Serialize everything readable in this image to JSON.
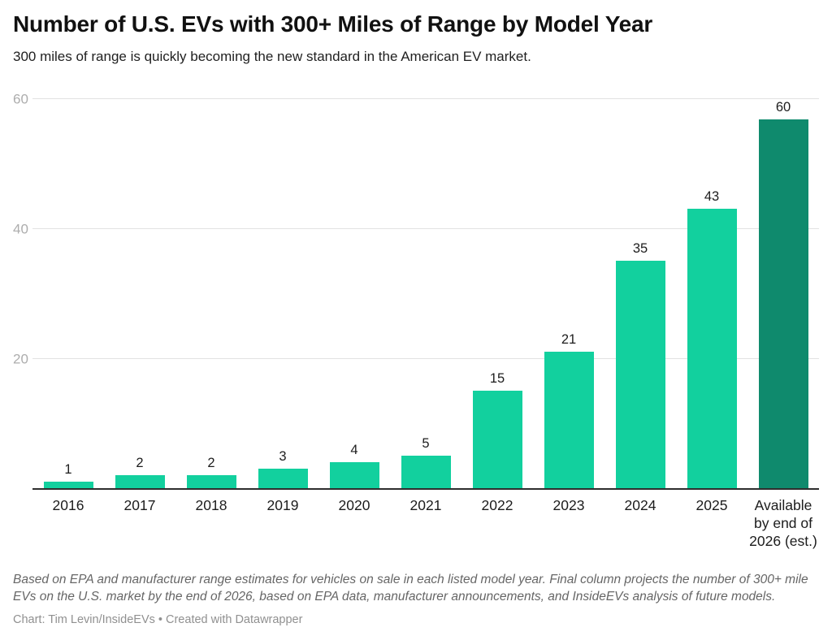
{
  "header": {
    "title": "Number of U.S. EVs with 300+ Miles of Range by Model Year",
    "subtitle": "300 miles of range is quickly becoming the new standard in the American EV market."
  },
  "chart_data": {
    "type": "bar",
    "categories": [
      "2016",
      "2017",
      "2018",
      "2019",
      "2020",
      "2021",
      "2022",
      "2023",
      "2024",
      "2025",
      "Available by end of 2026 (est.)"
    ],
    "values": [
      1,
      2,
      2,
      3,
      4,
      5,
      15,
      21,
      35,
      43,
      60
    ],
    "title": "Number of U.S. EVs with 300+ Miles of Range by Model Year",
    "xlabel": "",
    "ylabel": "",
    "ylim": [
      0,
      60
    ],
    "yticks": [
      20,
      40,
      60
    ],
    "grid": "horizontal",
    "legend": "none",
    "value_labels": true,
    "bar_color": "#12d09e",
    "final_bar_color": "#0f8a6d",
    "highlight_last": true
  },
  "footer": {
    "note": "Based on EPA and manufacturer range estimates for vehicles on sale in each listed model year. Final column projects the number of 300+ mile EVs on the U.S. market by the end of 2026, based on EPA data, manufacturer announcements, and InsideEVs analysis of future models.",
    "credit": "Chart: Tim Levin/InsideEVs • Created with Datawrapper"
  }
}
